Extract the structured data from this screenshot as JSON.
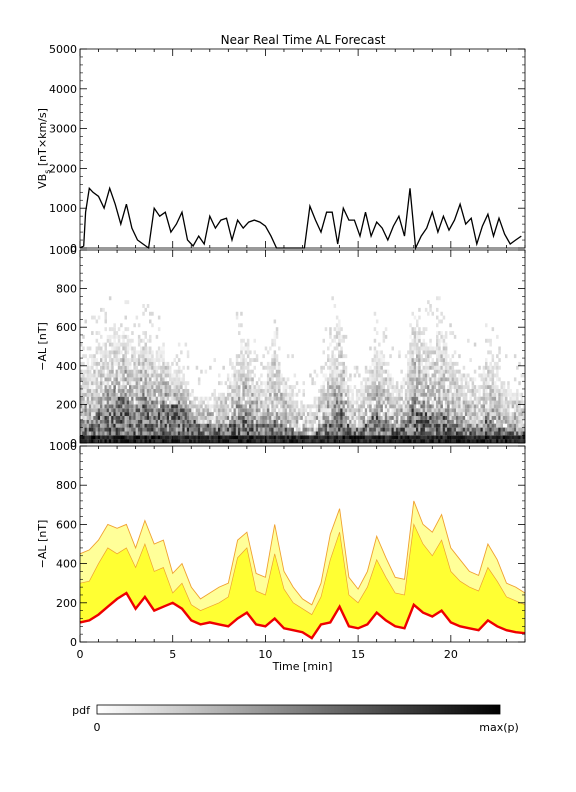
{
  "title": "Near Real Time AL Forecast",
  "colors": {
    "yellow_band": "#ffff33",
    "light_band": "#ffff99",
    "orange_line": "#f0a030",
    "median_line": "#ee0000",
    "trace": "#000000"
  },
  "colorbar": {
    "label": "pdf",
    "min_label": "0",
    "max_label": "max(p)"
  },
  "chart_data": [
    {
      "type": "line",
      "panel": "vbs",
      "ylabel_main": "VB",
      "ylabel_sub": "s",
      "ylabel_rest": " [nT×km/s]",
      "ylim": [
        0,
        5000
      ],
      "yticks": [
        0,
        1000,
        2000,
        3000,
        4000,
        5000
      ],
      "xlim": [
        0,
        24
      ],
      "series": [
        {
          "x": [
            0,
            0.2,
            0.3,
            0.5,
            0.7,
            1,
            1.3,
            1.6,
            1.9,
            2.2,
            2.5,
            2.8,
            3.1,
            3.4,
            3.7,
            4,
            4.3,
            4.6,
            4.9,
            5.2,
            5.5,
            5.8,
            6.1,
            6.4,
            6.7,
            7,
            7.3,
            7.6,
            7.9,
            8.2,
            8.5,
            8.8,
            9.1,
            9.4,
            9.7,
            10,
            10.3,
            10.6,
            10.9,
            11.2,
            11.5,
            11.8,
            12.1,
            12.4,
            12.7,
            13,
            13.3,
            13.6,
            13.9,
            14.2,
            14.5,
            14.8,
            15.1,
            15.4,
            15.7,
            16,
            16.3,
            16.6,
            16.9,
            17.2,
            17.5,
            17.8,
            18.1,
            18.4,
            18.7,
            19,
            19.3,
            19.6,
            19.9,
            20.2,
            20.5,
            20.8,
            21.1,
            21.4,
            21.7,
            22,
            22.3,
            22.6,
            22.9,
            23.2,
            23.5,
            23.8
          ],
          "y": [
            0,
            50,
            900,
            1500,
            1400,
            1300,
            1000,
            1500,
            1100,
            600,
            1100,
            500,
            200,
            100,
            0,
            1000,
            800,
            900,
            400,
            600,
            900,
            200,
            50,
            300,
            100,
            800,
            500,
            700,
            750,
            200,
            700,
            500,
            650,
            700,
            650,
            550,
            300,
            0,
            0,
            0,
            0,
            0,
            0,
            1050,
            700,
            400,
            900,
            900,
            100,
            1000,
            700,
            700,
            300,
            900,
            300,
            650,
            500,
            200,
            550,
            800,
            300,
            1500,
            0,
            300,
            500,
            900,
            400,
            800,
            450,
            700,
            1100,
            600,
            750,
            100,
            550,
            850,
            300,
            750,
            350,
            100,
            200,
            300
          ]
        }
      ]
    },
    {
      "type": "heatmap",
      "panel": "pdf",
      "ylabel": "−AL [nT]",
      "ylim": [
        0,
        1000
      ],
      "yticks": [
        0,
        200,
        400,
        600,
        800,
        1000
      ],
      "xlim": [
        0,
        24
      ]
    },
    {
      "type": "area",
      "panel": "forecast",
      "ylabel": "−AL [nT]",
      "xlabel": "Time [min]",
      "ylim": [
        0,
        1000
      ],
      "yticks": [
        0,
        200,
        400,
        600,
        800,
        1000
      ],
      "xticks": [
        0,
        5,
        10,
        15,
        20
      ],
      "xlim": [
        0,
        24
      ],
      "x": [
        0,
        0.5,
        1,
        1.5,
        2,
        2.5,
        3,
        3.5,
        4,
        4.5,
        5,
        5.5,
        6,
        6.5,
        7,
        7.5,
        8,
        8.5,
        9,
        9.5,
        10,
        10.5,
        11,
        11.5,
        12,
        12.5,
        13,
        13.5,
        14,
        14.5,
        15,
        15.5,
        16,
        16.5,
        17,
        17.5,
        18,
        18.5,
        19,
        19.5,
        20,
        20.5,
        21,
        21.5,
        22,
        22.5,
        23,
        23.5,
        24
      ],
      "series": [
        {
          "name": "",
          "role": "upper",
          "values": [
            450,
            470,
            520,
            600,
            580,
            600,
            480,
            620,
            500,
            520,
            350,
            400,
            280,
            220,
            250,
            280,
            300,
            520,
            560,
            350,
            330,
            600,
            360,
            280,
            220,
            190,
            300,
            550,
            680,
            330,
            270,
            360,
            540,
            430,
            330,
            320,
            720,
            600,
            560,
            650,
            480,
            420,
            360,
            340,
            500,
            420,
            300,
            280,
            250
          ]
        },
        {
          "name": "",
          "role": "yellow",
          "values": [
            300,
            310,
            400,
            480,
            450,
            480,
            380,
            500,
            360,
            380,
            250,
            300,
            190,
            160,
            180,
            200,
            230,
            430,
            480,
            260,
            240,
            450,
            270,
            200,
            170,
            140,
            230,
            420,
            560,
            240,
            200,
            280,
            420,
            330,
            250,
            240,
            600,
            500,
            440,
            520,
            360,
            310,
            280,
            260,
            380,
            310,
            230,
            210,
            190
          ]
        },
        {
          "name": "",
          "role": "median",
          "values": [
            100,
            110,
            140,
            180,
            220,
            250,
            170,
            230,
            160,
            180,
            200,
            170,
            110,
            90,
            100,
            90,
            80,
            120,
            150,
            90,
            80,
            120,
            70,
            60,
            50,
            20,
            90,
            100,
            180,
            80,
            70,
            90,
            150,
            110,
            80,
            70,
            190,
            150,
            130,
            160,
            100,
            80,
            70,
            60,
            110,
            80,
            60,
            50,
            45
          ]
        }
      ]
    }
  ]
}
